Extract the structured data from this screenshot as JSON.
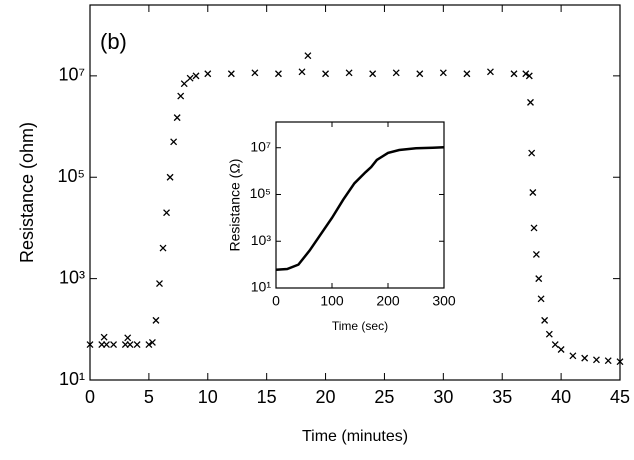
{
  "chart_data": [
    {
      "type": "scatter",
      "annotation": "(b)",
      "x_label": "Time (minutes)",
      "y_label": "Resistance (ohm)",
      "log_y": true,
      "color": "#000000",
      "marker": "x",
      "xlim": [
        0,
        45
      ],
      "xticks": [
        0,
        5,
        10,
        15,
        20,
        25,
        30,
        35,
        40,
        45
      ],
      "ylim": [
        10,
        250000000
      ],
      "yticks": [
        {
          "value": 10,
          "label": "10¹"
        },
        {
          "value": 1000,
          "label": "10³"
        },
        {
          "value": 100000,
          "label": "10⁵"
        },
        {
          "value": 10000000,
          "label": "10⁷"
        }
      ],
      "x": [
        0,
        1,
        1.2,
        1.4,
        2,
        3,
        3.2,
        3.4,
        4,
        5,
        5.3,
        5.6,
        5.9,
        6.2,
        6.5,
        6.8,
        7.1,
        7.4,
        7.7,
        8,
        8.5,
        9,
        10,
        12,
        14,
        16,
        18,
        18.5,
        20,
        22,
        24,
        26,
        28,
        30,
        32,
        34,
        36,
        37,
        37.3,
        37.4,
        37.5,
        37.6,
        37.7,
        37.9,
        38.1,
        38.3,
        38.6,
        39,
        39.5,
        40,
        41,
        42,
        43,
        44,
        45
      ],
      "values": [
        50,
        50,
        70,
        50,
        50,
        50,
        68,
        50,
        50,
        50,
        55,
        150,
        800,
        4000,
        20000,
        100000,
        500000,
        1500000,
        4000000,
        7000000,
        9000000,
        10000000,
        11000000,
        11000000,
        11500000,
        11000000,
        12000000,
        25000000,
        11000000,
        11500000,
        11000000,
        11500000,
        11000000,
        11500000,
        11000000,
        12000000,
        11000000,
        11000000,
        10000000,
        3000000,
        300000,
        50000,
        10000,
        3000,
        1000,
        400,
        150,
        80,
        50,
        40,
        30,
        27,
        25,
        24,
        23
      ]
    },
    {
      "type": "line",
      "x_label": "Time (sec)",
      "y_label": "Resistance (Ω)",
      "log_y": true,
      "color": "#000000",
      "xlim": [
        0,
        300
      ],
      "xticks": [
        0,
        100,
        200,
        300
      ],
      "ylim": [
        10,
        126000000
      ],
      "yticks": [
        {
          "value": 10,
          "label": "10¹"
        },
        {
          "value": 1000,
          "label": "10³"
        },
        {
          "value": 100000,
          "label": "10⁵"
        },
        {
          "value": 10000000,
          "label": "10⁷"
        }
      ],
      "x": [
        0,
        20,
        40,
        60,
        80,
        100,
        120,
        140,
        160,
        170,
        180,
        200,
        220,
        250,
        280,
        300
      ],
      "values": [
        60,
        65,
        100,
        400,
        2000,
        10000,
        60000,
        300000,
        900000,
        1500000,
        3000000,
        6000000,
        8000000,
        9500000,
        10000000,
        10500000
      ]
    }
  ]
}
